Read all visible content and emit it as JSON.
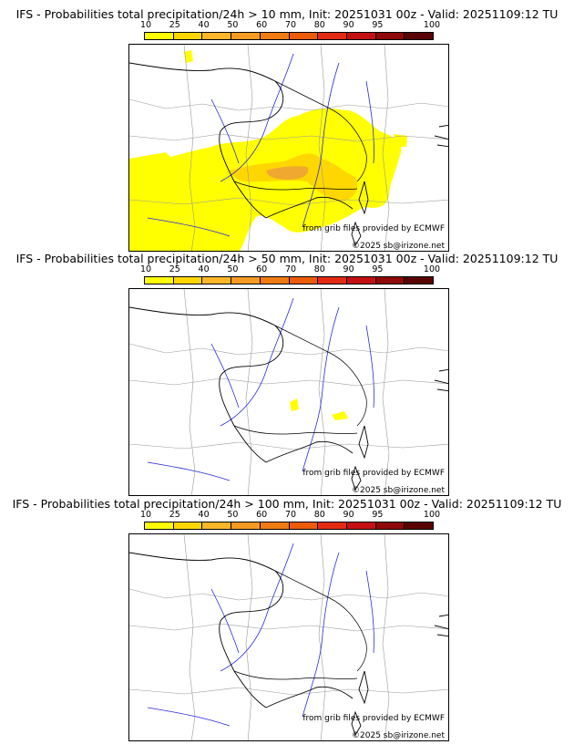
{
  "colorbar": {
    "ticks": [
      "10",
      "25",
      "40",
      "50",
      "60",
      "70",
      "80",
      "90",
      "95",
      "100"
    ],
    "colors": [
      "#ffff00",
      "#ffd700",
      "#fbb62a",
      "#f59a22",
      "#f07b12",
      "#ec5b0a",
      "#e22b12",
      "#c41012",
      "#8e0909",
      "#5a0303"
    ]
  },
  "panels": [
    {
      "title": "IFS - Probabilities total precipitation/24h > 10 mm, Init: 20251031 00z - Valid: 20251109:12 TU",
      "source": "from grib files provided by ECMWF",
      "copyright": "©2025 sb@irizone.net"
    },
    {
      "title": "IFS - Probabilities total precipitation/24h > 50 mm, Init: 20251031 00z - Valid: 20251109:12 TU",
      "source": "from grib files provided by ECMWF",
      "copyright": "©2025 sb@irizone.net"
    },
    {
      "title": "IFS - Probabilities total precipitation/24h > 100 mm, Init: 20251031 00z - Valid: 20251109:12 TU",
      "source": "from grib files provided by ECMWF",
      "copyright": "©2025 sb@irizone.net"
    }
  ],
  "map_colors": {
    "coast": "#000000",
    "rivers": "#2a2ae0",
    "borders": "#9a9a9a",
    "land_bg": "#ffffff"
  }
}
